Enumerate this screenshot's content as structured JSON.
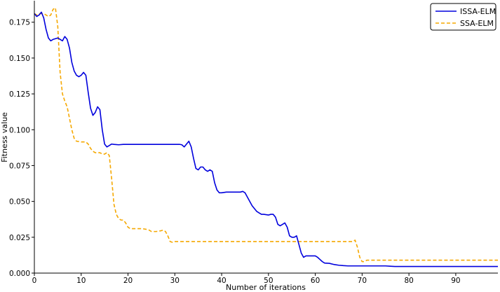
{
  "chart_data": {
    "type": "line",
    "xlabel": "Number of iterations",
    "ylabel": "Fitness value",
    "xlim": [
      0,
      99
    ],
    "ylim": [
      0,
      0.19
    ],
    "x_ticks": [
      0,
      10,
      20,
      30,
      40,
      50,
      60,
      70,
      80,
      90
    ],
    "y_ticks": [
      0.0,
      0.025,
      0.05,
      0.075,
      0.1,
      0.125,
      0.15,
      0.175
    ],
    "y_tick_labels": [
      "0.000",
      "0.025",
      "0.050",
      "0.075",
      "0.100",
      "0.125",
      "0.150",
      "0.175"
    ],
    "grid": false,
    "legend_position": "top-right",
    "series": [
      {
        "name": "ISSA-ELM",
        "color": "#0000dd",
        "line_style": "solid",
        "points": [
          [
            0,
            0.181
          ],
          [
            0.5,
            0.179
          ],
          [
            1,
            0.18
          ],
          [
            1.5,
            0.182
          ],
          [
            2,
            0.178
          ],
          [
            2.5,
            0.17
          ],
          [
            3,
            0.164
          ],
          [
            3.5,
            0.162
          ],
          [
            4,
            0.163
          ],
          [
            5,
            0.164
          ],
          [
            6,
            0.162
          ],
          [
            6.5,
            0.165
          ],
          [
            7,
            0.163
          ],
          [
            7.5,
            0.157
          ],
          [
            8,
            0.147
          ],
          [
            8.5,
            0.141
          ],
          [
            9,
            0.138
          ],
          [
            9.5,
            0.137
          ],
          [
            10,
            0.138
          ],
          [
            10.5,
            0.14
          ],
          [
            11,
            0.138
          ],
          [
            11.5,
            0.126
          ],
          [
            12,
            0.115
          ],
          [
            12.5,
            0.11
          ],
          [
            13,
            0.112
          ],
          [
            13.5,
            0.116
          ],
          [
            14,
            0.114
          ],
          [
            14.5,
            0.1
          ],
          [
            15,
            0.09
          ],
          [
            15.5,
            0.088
          ],
          [
            16,
            0.089
          ],
          [
            16.5,
            0.09
          ],
          [
            17,
            0.0898
          ],
          [
            18,
            0.0895
          ],
          [
            19,
            0.0898
          ],
          [
            20,
            0.0898
          ],
          [
            25,
            0.0898
          ],
          [
            30,
            0.0898
          ],
          [
            31,
            0.0898
          ],
          [
            31.5,
            0.0895
          ],
          [
            32,
            0.088
          ],
          [
            32.5,
            0.09
          ],
          [
            33,
            0.092
          ],
          [
            33.5,
            0.088
          ],
          [
            34,
            0.08
          ],
          [
            34.5,
            0.073
          ],
          [
            35,
            0.072
          ],
          [
            35.5,
            0.074
          ],
          [
            36,
            0.074
          ],
          [
            36.5,
            0.072
          ],
          [
            37,
            0.071
          ],
          [
            37.5,
            0.072
          ],
          [
            38,
            0.071
          ],
          [
            38.5,
            0.063
          ],
          [
            39,
            0.058
          ],
          [
            39.5,
            0.056
          ],
          [
            40,
            0.056
          ],
          [
            41,
            0.0565
          ],
          [
            42,
            0.0565
          ],
          [
            43,
            0.0565
          ],
          [
            44,
            0.0565
          ],
          [
            44.5,
            0.057
          ],
          [
            45,
            0.056
          ],
          [
            45.5,
            0.053
          ],
          [
            46,
            0.05
          ],
          [
            46.5,
            0.047
          ],
          [
            47,
            0.045
          ],
          [
            47.5,
            0.043
          ],
          [
            48,
            0.042
          ],
          [
            48.5,
            0.041
          ],
          [
            49,
            0.041
          ],
          [
            50,
            0.0405
          ],
          [
            50.5,
            0.041
          ],
          [
            51,
            0.041
          ],
          [
            51.5,
            0.039
          ],
          [
            52,
            0.034
          ],
          [
            52.5,
            0.033
          ],
          [
            53,
            0.034
          ],
          [
            53.5,
            0.035
          ],
          [
            54,
            0.032
          ],
          [
            54.5,
            0.026
          ],
          [
            55,
            0.025
          ],
          [
            55.5,
            0.025
          ],
          [
            56,
            0.026
          ],
          [
            56.5,
            0.02
          ],
          [
            57,
            0.014
          ],
          [
            57.5,
            0.011
          ],
          [
            58,
            0.012
          ],
          [
            59,
            0.012
          ],
          [
            60,
            0.012
          ],
          [
            60.5,
            0.011
          ],
          [
            61,
            0.0095
          ],
          [
            61.5,
            0.008
          ],
          [
            62,
            0.007
          ],
          [
            63,
            0.0068
          ],
          [
            64,
            0.006
          ],
          [
            65,
            0.0055
          ],
          [
            66,
            0.0052
          ],
          [
            67,
            0.005
          ],
          [
            70,
            0.005
          ],
          [
            75,
            0.005
          ],
          [
            76,
            0.0048
          ],
          [
            77,
            0.0046
          ],
          [
            80,
            0.0046
          ],
          [
            85,
            0.0046
          ],
          [
            90,
            0.0046
          ],
          [
            95,
            0.0046
          ],
          [
            99,
            0.0046
          ]
        ]
      },
      {
        "name": "SSA-ELM",
        "color": "#f5a800",
        "line_style": "dashed",
        "points": [
          [
            0,
            0.181
          ],
          [
            0.5,
            0.18
          ],
          [
            1,
            0.181
          ],
          [
            1.5,
            0.181
          ],
          [
            2,
            0.181
          ],
          [
            2.5,
            0.18
          ],
          [
            3,
            0.179
          ],
          [
            3.5,
            0.18
          ],
          [
            4,
            0.184
          ],
          [
            4.5,
            0.185
          ],
          [
            5,
            0.172
          ],
          [
            5.5,
            0.14
          ],
          [
            6,
            0.125
          ],
          [
            6.5,
            0.12
          ],
          [
            7,
            0.116
          ],
          [
            7.5,
            0.108
          ],
          [
            8,
            0.1
          ],
          [
            8.5,
            0.094
          ],
          [
            9,
            0.092
          ],
          [
            10,
            0.0915
          ],
          [
            11,
            0.0915
          ],
          [
            11.5,
            0.09
          ],
          [
            12,
            0.087
          ],
          [
            12.5,
            0.085
          ],
          [
            13,
            0.084
          ],
          [
            14,
            0.084
          ],
          [
            14.5,
            0.083
          ],
          [
            15,
            0.083
          ],
          [
            15.5,
            0.084
          ],
          [
            16,
            0.082
          ],
          [
            16.5,
            0.066
          ],
          [
            17,
            0.048
          ],
          [
            17.5,
            0.041
          ],
          [
            18,
            0.038
          ],
          [
            18.5,
            0.037
          ],
          [
            19,
            0.037
          ],
          [
            19.5,
            0.035
          ],
          [
            20,
            0.032
          ],
          [
            20.5,
            0.031
          ],
          [
            21,
            0.031
          ],
          [
            22,
            0.031
          ],
          [
            23,
            0.031
          ],
          [
            24,
            0.0305
          ],
          [
            24.5,
            0.03
          ],
          [
            25,
            0.029
          ],
          [
            26,
            0.029
          ],
          [
            27,
            0.0295
          ],
          [
            27.5,
            0.03
          ],
          [
            28,
            0.029
          ],
          [
            28.5,
            0.026
          ],
          [
            29,
            0.022
          ],
          [
            29.5,
            0.0215
          ],
          [
            30,
            0.022
          ],
          [
            35,
            0.022
          ],
          [
            40,
            0.022
          ],
          [
            45,
            0.022
          ],
          [
            50,
            0.022
          ],
          [
            55,
            0.022
          ],
          [
            60,
            0.022
          ],
          [
            65,
            0.022
          ],
          [
            67,
            0.022
          ],
          [
            67.5,
            0.022
          ],
          [
            68,
            0.022
          ],
          [
            68.5,
            0.023
          ],
          [
            69,
            0.018
          ],
          [
            69.5,
            0.011
          ],
          [
            70,
            0.008
          ],
          [
            70.5,
            0.008
          ],
          [
            71,
            0.009
          ],
          [
            75,
            0.009
          ],
          [
            80,
            0.009
          ],
          [
            85,
            0.009
          ],
          [
            90,
            0.009
          ],
          [
            95,
            0.009
          ],
          [
            99,
            0.009
          ]
        ]
      }
    ]
  }
}
